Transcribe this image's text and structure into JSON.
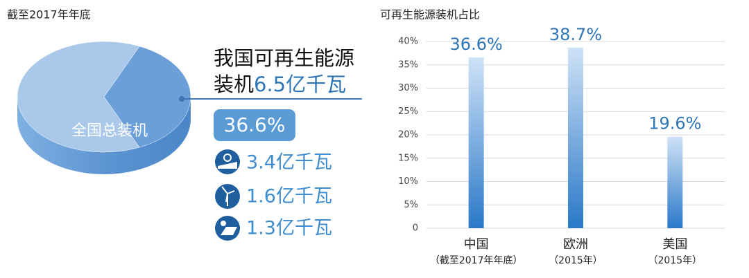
{
  "chart_data": [
    {
      "type": "pie",
      "title": "截至2017年年底",
      "categories": [
        null,
        "全国总装机"
      ],
      "values": [
        36.6,
        63.4
      ],
      "value_labels": [
        "36.6%",
        null
      ],
      "colors": [
        "#6a9fd8",
        "#a9c8ea"
      ],
      "callout": [
        "我国可再生能源",
        "装机"
      ],
      "callout_amount": "6.5亿千瓦",
      "breakdown": [
        "3.4亿千瓦",
        "1.6亿千瓦",
        "1.3亿千瓦"
      ]
    },
    {
      "type": "bar",
      "title": "可再生能源装机占比",
      "categories": [
        "中国",
        "欧洲",
        "美国"
      ],
      "sublabels": [
        "（截至2017年年底）",
        "（2015年）",
        "（2015年）"
      ],
      "values": [
        36.6,
        38.7,
        19.6
      ],
      "value_labels": [
        "36.6%",
        "38.7%",
        "19.6%"
      ],
      "gradient": [
        "#cfe2f6",
        "#2a78c8"
      ],
      "ylim": [
        0,
        40
      ],
      "yticks": [
        0,
        {
          "value": 10,
          "label": "10%"
        },
        {
          "value": 15,
          "label": "15%"
        },
        {
          "value": 20,
          "label": "20%"
        },
        {
          "value": 25,
          "label": "25%"
        },
        {
          "value": 30,
          "label": "30%"
        },
        {
          "value": 35,
          "label": "35%"
        },
        {
          "value": 40,
          "label": "40%"
        },
        {
          "value": 5,
          "label": "5%"
        }
      ],
      "grid": true
    }
  ]
}
